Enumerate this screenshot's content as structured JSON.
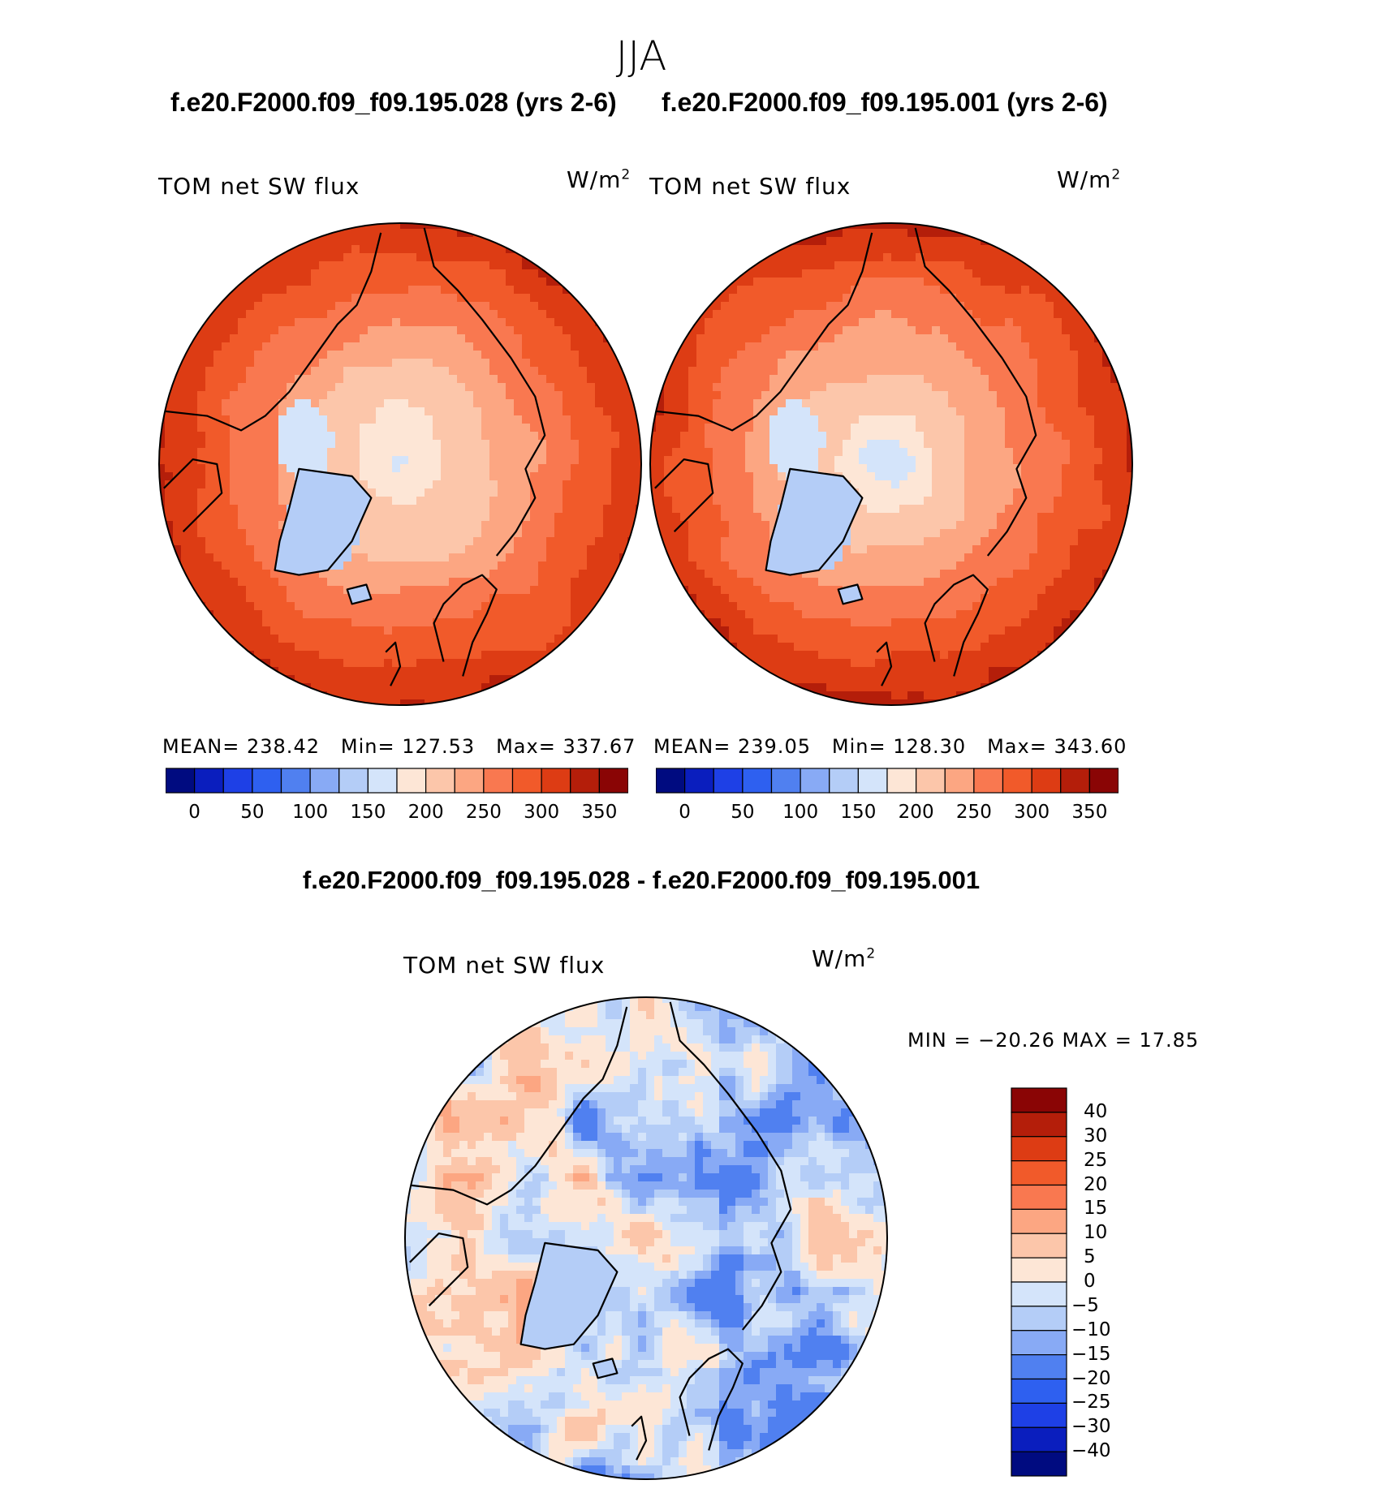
{
  "page": {
    "suptitle": "JJA",
    "case_left": "f.e20.F2000.f09_f09.195.028 (yrs 2-6)",
    "case_right": "f.e20.F2000.f09_f09.195.001 (yrs 2-6)",
    "diff_title": "f.e20.F2000.f09_f09.195.028 - f.e20.F2000.f09_f09.195.001"
  },
  "chart_data": [
    {
      "type": "heatmap",
      "projection": "north-polar-stereographic",
      "title": "TOM net SW flux",
      "units_base": "W/m",
      "units_exp": "2",
      "stats": {
        "mean_label": "MEAN=",
        "mean": "238.42",
        "min_label": "Min=",
        "min": "127.53",
        "max_label": "Max=",
        "max": "337.67"
      },
      "colorbar": {
        "orientation": "horizontal",
        "tick_labels": [
          "0",
          "50",
          "100",
          "150",
          "200",
          "250",
          "300",
          "350"
        ],
        "colors": [
          "#000b80",
          "#0a1ebe",
          "#1e40e6",
          "#2e60f0",
          "#5080f0",
          "#88aaf5",
          "#b4cdf7",
          "#d4e4fa",
          "#fde6d6",
          "#fcc6aa",
          "#fca682",
          "#f97850",
          "#f15a2a",
          "#dd3c14",
          "#b41e0a",
          "#8a0505"
        ]
      }
    },
    {
      "type": "heatmap",
      "projection": "north-polar-stereographic",
      "title": "TOM net SW flux",
      "units_base": "W/m",
      "units_exp": "2",
      "stats": {
        "mean_label": "MEAN=",
        "mean": "239.05",
        "min_label": "Min=",
        "min": "128.30",
        "max_label": "Max=",
        "max": "343.60"
      },
      "colorbar": {
        "orientation": "horizontal",
        "tick_labels": [
          "0",
          "50",
          "100",
          "150",
          "200",
          "250",
          "300",
          "350"
        ],
        "colors": [
          "#000b80",
          "#0a1ebe",
          "#1e40e6",
          "#2e60f0",
          "#5080f0",
          "#88aaf5",
          "#b4cdf7",
          "#d4e4fa",
          "#fde6d6",
          "#fcc6aa",
          "#fca682",
          "#f97850",
          "#f15a2a",
          "#dd3c14",
          "#b41e0a",
          "#8a0505"
        ]
      }
    },
    {
      "type": "heatmap",
      "projection": "north-polar-stereographic",
      "title": "TOM net SW flux",
      "units_base": "W/m",
      "units_exp": "2",
      "stats": {
        "text": "MIN = −20.26 MAX =   17.85",
        "min": -20.26,
        "max": 17.85
      },
      "colorbar": {
        "orientation": "vertical",
        "tick_labels": [
          "40",
          "30",
          "25",
          "20",
          "15",
          "10",
          "5",
          "0",
          "−5",
          "−10",
          "−15",
          "−20",
          "−25",
          "−30",
          "−40"
        ],
        "colors": [
          "#8a0505",
          "#b41e0a",
          "#dd3c14",
          "#f15a2a",
          "#f97850",
          "#fca682",
          "#fcc6aa",
          "#fde6d6",
          "#d4e4fa",
          "#b4cdf7",
          "#88aaf5",
          "#5080f0",
          "#2e60f0",
          "#1e40e6",
          "#0a1ebe",
          "#000b80"
        ]
      }
    }
  ]
}
